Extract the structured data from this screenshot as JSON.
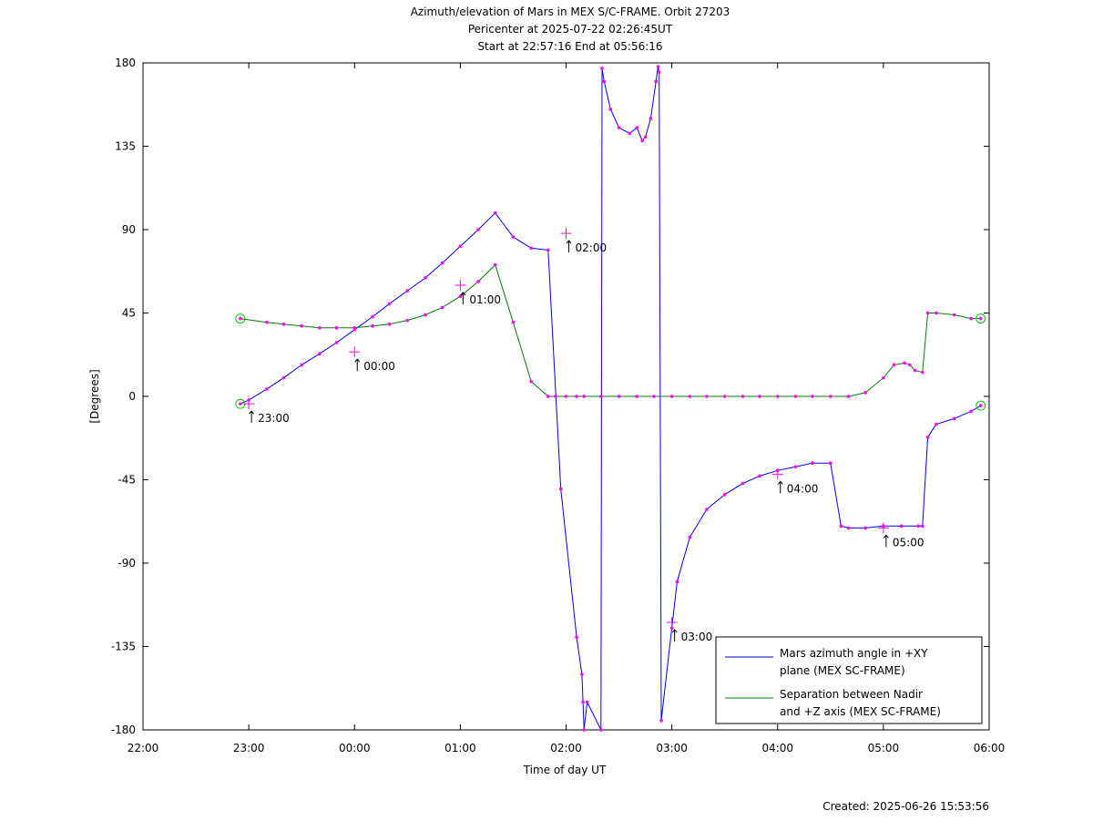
{
  "title_lines": [
    "Azimuth/elevation of Mars in MEX S/C-FRAME.  Orbit 27203",
    "Pericenter at 2025-07-22 02:26:45UT",
    "Start at 22:57:16 End at 05:56:16"
  ],
  "footer": "Created: 2025-06-26 15:53:56",
  "chart_data": {
    "type": "line",
    "xlabel": "Time of day UT",
    "ylabel": "[Degrees]",
    "x_unit": "hours after 22:00 UT",
    "xlim": [
      0,
      8
    ],
    "ylim": [
      -180,
      180
    ],
    "xticks": [
      0,
      1,
      2,
      3,
      4,
      5,
      6,
      7,
      8
    ],
    "xtick_labels": [
      "22:00",
      "23:00",
      "00:00",
      "01:00",
      "02:00",
      "03:00",
      "04:00",
      "05:00",
      "06:00"
    ],
    "yticks": [
      180,
      135,
      90,
      45,
      0,
      -45,
      -90,
      -135,
      -180
    ],
    "ytick_labels": [
      "180",
      "135",
      "90",
      "45",
      "0",
      "-45",
      "-90",
      "-135",
      "-180"
    ],
    "grid": false,
    "legend_position": "bottom-right",
    "colors": {
      "azimuth": "#0000ff",
      "separation": "#008000",
      "markers": "#ff00ff",
      "endpoints": "#00cc00"
    },
    "series": [
      {
        "name": "Mars azimuth angle in +XY plane (MEX SC-FRAME)",
        "legend_lines": [
          "Mars azimuth angle in +XY",
          "plane (MEX SC-FRAME)"
        ],
        "x": [
          0.92,
          1.0,
          1.17,
          1.33,
          1.5,
          1.67,
          1.83,
          2.0,
          2.17,
          2.33,
          2.5,
          2.67,
          2.83,
          3.0,
          3.17,
          3.33,
          3.5,
          3.67,
          3.83,
          3.95,
          4.1,
          4.15,
          4.16,
          4.17,
          4.2,
          4.33,
          4.34,
          4.36,
          4.42,
          4.5,
          4.6,
          4.67,
          4.72,
          4.75,
          4.8,
          4.85,
          4.87,
          4.88,
          4.9,
          5.0,
          5.05,
          5.17,
          5.33,
          5.5,
          5.67,
          5.83,
          6.0,
          6.17,
          6.33,
          6.5,
          6.6,
          6.67,
          6.83,
          7.0,
          7.17,
          7.33,
          7.37,
          7.42,
          7.5,
          7.67,
          7.83,
          7.92
        ],
        "y": [
          -4,
          -2,
          4,
          10,
          17,
          23,
          29,
          36,
          43,
          50,
          57,
          64,
          72,
          81,
          90,
          99,
          86,
          80,
          79,
          -50,
          -130,
          -150,
          -165,
          -180,
          -165,
          -180,
          177,
          170,
          155,
          145,
          142,
          145,
          138,
          140,
          150,
          170,
          178,
          175,
          -175,
          -125,
          -100,
          -76,
          -61,
          -53,
          -47,
          -43,
          -40,
          -38,
          -36,
          -36,
          -70,
          -71,
          -71,
          -70,
          -70,
          -70,
          -70,
          -22,
          -15,
          -12,
          -8,
          -5
        ]
      },
      {
        "name": "Separation between Nadir and +Z axis (MEX SC-FRAME)",
        "legend_lines": [
          "Separation between Nadir",
          "and +Z axis (MEX SC-FRAME)"
        ],
        "x": [
          0.92,
          1.17,
          1.33,
          1.5,
          1.67,
          1.83,
          2.0,
          2.17,
          2.33,
          2.5,
          2.67,
          2.83,
          3.0,
          3.17,
          3.33,
          3.5,
          3.67,
          3.83,
          3.9,
          4.0,
          4.1,
          4.17,
          4.33,
          4.5,
          4.67,
          4.83,
          5.0,
          5.17,
          5.33,
          5.5,
          5.67,
          5.83,
          6.0,
          6.17,
          6.33,
          6.5,
          6.67,
          6.83,
          7.0,
          7.1,
          7.2,
          7.25,
          7.3,
          7.37,
          7.42,
          7.5,
          7.67,
          7.83,
          7.92
        ],
        "y": [
          42,
          40,
          39,
          38,
          37,
          37,
          37,
          38,
          39,
          41,
          44,
          48,
          54,
          62,
          71,
          40,
          8,
          0,
          0,
          0,
          0,
          0,
          0,
          0,
          0,
          0,
          0,
          0,
          0,
          0,
          0,
          0,
          0,
          0,
          0,
          0,
          0,
          2,
          10,
          17,
          18,
          17,
          14,
          13,
          45,
          45,
          44,
          42,
          42
        ]
      }
    ],
    "annotations": [
      {
        "text": "23:00",
        "x": 1.0,
        "y": -4
      },
      {
        "text": "00:00",
        "x": 2.0,
        "y": 24
      },
      {
        "text": "01:00",
        "x": 3.0,
        "y": 60
      },
      {
        "text": "02:00",
        "x": 4.0,
        "y": 88
      },
      {
        "text": "03:00",
        "x": 5.0,
        "y": -122
      },
      {
        "text": "04:00",
        "x": 6.0,
        "y": -42
      },
      {
        "text": "05:00",
        "x": 7.0,
        "y": -71
      }
    ]
  }
}
